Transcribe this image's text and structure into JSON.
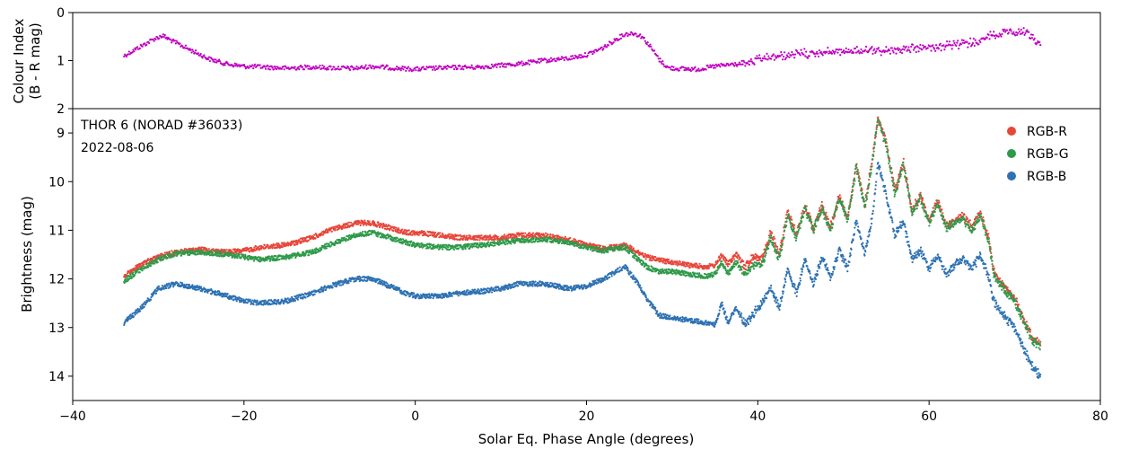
{
  "chart_data": {
    "type": "scatter",
    "x_axis": {
      "label": "Solar Eq. Phase Angle (degrees)",
      "range": [
        -40,
        80
      ],
      "ticks": [
        -40,
        -20,
        0,
        20,
        40,
        60,
        80
      ],
      "tick_labels": [
        "−40",
        "−20",
        "0",
        "20",
        "40",
        "60",
        "80"
      ]
    },
    "panels": [
      {
        "id": "colour",
        "ylabel_lines": [
          "Colour Index",
          "(B - R mag)"
        ],
        "ylim": [
          0,
          2
        ],
        "inverted": true,
        "ticks": [
          0,
          1,
          2
        ],
        "tick_labels": [
          "0",
          "1",
          "2"
        ],
        "series": [
          {
            "color": "#c000c0",
            "x": [
              -34,
              -33,
              -32,
              -30.5,
              -29.5,
              -28.5,
              -26,
              -24,
              -22,
              -20,
              -18,
              -15,
              -12,
              -10,
              -7,
              -5,
              -2,
              0,
              2,
              5,
              7,
              10,
              12,
              15,
              18,
              20,
              22,
              23.5,
              24.5,
              25.5,
              26.5,
              27.5,
              28.5,
              29.5,
              31,
              33,
              35,
              37,
              38.5,
              40,
              42,
              45,
              50,
              55,
              60,
              63,
              65,
              66.5,
              67.3,
              68,
              69,
              70,
              71,
              72,
              73
            ],
            "y": [
              0.9,
              0.8,
              0.7,
              0.55,
              0.48,
              0.58,
              0.8,
              0.97,
              1.07,
              1.12,
              1.13,
              1.16,
              1.13,
              1.15,
              1.16,
              1.12,
              1.16,
              1.18,
              1.16,
              1.14,
              1.14,
              1.1,
              1.07,
              1.0,
              0.95,
              0.88,
              0.73,
              0.55,
              0.45,
              0.43,
              0.5,
              0.72,
              0.98,
              1.15,
              1.17,
              1.18,
              1.12,
              1.08,
              1.07,
              0.99,
              0.92,
              0.86,
              0.8,
              0.79,
              0.73,
              0.68,
              0.62,
              0.56,
              0.45,
              0.52,
              0.35,
              0.42,
              0.38,
              0.5,
              0.65
            ]
          }
        ]
      },
      {
        "id": "brightness",
        "ylabel": "Brightness (mag)",
        "ylim": [
          8.5,
          14.5
        ],
        "inverted": true,
        "ticks": [
          9,
          10,
          11,
          12,
          13,
          14
        ],
        "tick_labels": [
          "9",
          "10",
          "11",
          "12",
          "13",
          "14"
        ],
        "annotation": [
          "THOR 6 (NORAD #36033)",
          "2022-08-06"
        ],
        "legend_position": "top-right",
        "series": [
          {
            "name": "RGB-R",
            "color": "#e8463a",
            "x": [
              -34,
              -32,
              -30,
              -28,
              -25,
              -22,
              -20,
              -18,
              -15,
              -12,
              -10,
              -7,
              -5,
              -3,
              -1,
              0,
              3,
              5,
              8,
              10,
              12,
              15,
              18,
              20,
              22,
              24.5,
              26,
              27,
              28.5,
              30,
              32,
              34,
              35,
              35.8,
              36.5,
              37.5,
              38.5,
              39.5,
              40.5,
              41.5,
              42.5,
              43.5,
              44.5,
              45.5,
              46.5,
              47.5,
              48.5,
              49.5,
              50.5,
              51.5,
              52.5,
              53.5,
              54,
              55,
              56,
              57,
              58,
              59,
              60,
              61,
              62,
              63,
              64,
              65,
              66,
              67,
              67.5,
              68,
              69,
              70,
              71,
              72,
              73
            ],
            "y": [
              11.95,
              11.7,
              11.55,
              11.45,
              11.4,
              11.45,
              11.42,
              11.35,
              11.3,
              11.15,
              11.0,
              10.85,
              10.85,
              10.95,
              11.05,
              11.05,
              11.1,
              11.15,
              11.15,
              11.15,
              11.1,
              11.1,
              11.2,
              11.3,
              11.38,
              11.3,
              11.45,
              11.55,
              11.62,
              11.65,
              11.72,
              11.75,
              11.72,
              11.5,
              11.7,
              11.5,
              11.75,
              11.55,
              11.6,
              11.05,
              11.5,
              10.6,
              11.1,
              10.5,
              10.95,
              10.5,
              10.95,
              10.3,
              10.75,
              9.65,
              10.5,
              9.4,
              8.7,
              9.2,
              10.2,
              9.6,
              10.6,
              10.3,
              10.8,
              10.4,
              10.9,
              10.8,
              10.7,
              10.95,
              10.65,
              11.2,
              11.8,
              12.0,
              12.2,
              12.4,
              12.8,
              13.2,
              13.35
            ]
          },
          {
            "name": "RGB-G",
            "color": "#2f9a4a",
            "x": [
              -34,
              -32,
              -30,
              -28,
              -25,
              -22,
              -20,
              -18,
              -15,
              -12,
              -10,
              -7,
              -5,
              -3,
              -1,
              0,
              3,
              5,
              8,
              10,
              12,
              15,
              18,
              20,
              22,
              24.5,
              26,
              27,
              28.5,
              30,
              32,
              34,
              35,
              35.8,
              36.5,
              37.5,
              38.5,
              39.5,
              40.5,
              41.5,
              42.5,
              43.5,
              44.5,
              45.5,
              46.5,
              47.5,
              48.5,
              49.5,
              50.5,
              51.5,
              52.5,
              53.5,
              54,
              55,
              56,
              57,
              58,
              59,
              60,
              61,
              62,
              63,
              64,
              65,
              66,
              67,
              67.5,
              68,
              69,
              70,
              71,
              72,
              73
            ],
            "y": [
              12.05,
              11.8,
              11.6,
              11.48,
              11.45,
              11.5,
              11.55,
              11.6,
              11.55,
              11.45,
              11.3,
              11.1,
              11.05,
              11.15,
              11.25,
              11.3,
              11.35,
              11.35,
              11.3,
              11.25,
              11.22,
              11.18,
              11.25,
              11.35,
              11.42,
              11.35,
              11.6,
              11.75,
              11.85,
              11.85,
              11.9,
              11.95,
              11.9,
              11.65,
              11.9,
              11.65,
              11.95,
              11.7,
              11.7,
              11.15,
              11.6,
              10.7,
              11.2,
              10.55,
              11.0,
              10.55,
              11.0,
              10.35,
              10.8,
              9.7,
              10.55,
              9.45,
              8.7,
              9.25,
              10.25,
              9.65,
              10.65,
              10.35,
              10.85,
              10.45,
              10.95,
              10.85,
              10.75,
              11.0,
              10.7,
              11.25,
              11.85,
              12.05,
              12.25,
              12.45,
              12.85,
              13.25,
              13.4
            ]
          },
          {
            "name": "RGB-B",
            "color": "#2e72b3",
            "x": [
              -34,
              -32,
              -30,
              -28,
              -25,
              -22,
              -20,
              -18,
              -15,
              -12,
              -10,
              -7,
              -5,
              -3,
              -1,
              0,
              3,
              5,
              8,
              10,
              12,
              15,
              18,
              20,
              22,
              24.5,
              26,
              27,
              28.5,
              30,
              32,
              34,
              35,
              35.8,
              36.5,
              37.5,
              38.5,
              39.5,
              40.5,
              41.5,
              42.5,
              43.5,
              44.5,
              45.5,
              46.5,
              47.5,
              48.5,
              49.5,
              50.5,
              51.5,
              52.5,
              53.5,
              54,
              55,
              56,
              57,
              58,
              59,
              60,
              61,
              62,
              63,
              64,
              65,
              66,
              67,
              67.5,
              68,
              69,
              70,
              71,
              72,
              73
            ],
            "y": [
              12.9,
              12.6,
              12.2,
              12.1,
              12.2,
              12.35,
              12.45,
              12.5,
              12.45,
              12.3,
              12.15,
              12.0,
              12.0,
              12.15,
              12.3,
              12.35,
              12.35,
              12.3,
              12.25,
              12.2,
              12.1,
              12.1,
              12.2,
              12.15,
              12.0,
              11.75,
              12.1,
              12.4,
              12.75,
              12.8,
              12.85,
              12.9,
              12.95,
              12.5,
              12.9,
              12.6,
              12.95,
              12.7,
              12.5,
              12.2,
              12.6,
              11.8,
              12.3,
              11.6,
              12.1,
              11.55,
              12.0,
              11.4,
              11.8,
              10.8,
              11.5,
              10.6,
              9.6,
              10.3,
              11.1,
              10.8,
              11.6,
              11.4,
              11.8,
              11.5,
              11.9,
              11.7,
              11.6,
              11.8,
              11.5,
              12.0,
              12.4,
              12.6,
              12.8,
              13.0,
              13.4,
              13.8,
              14.0
            ]
          }
        ]
      }
    ]
  }
}
